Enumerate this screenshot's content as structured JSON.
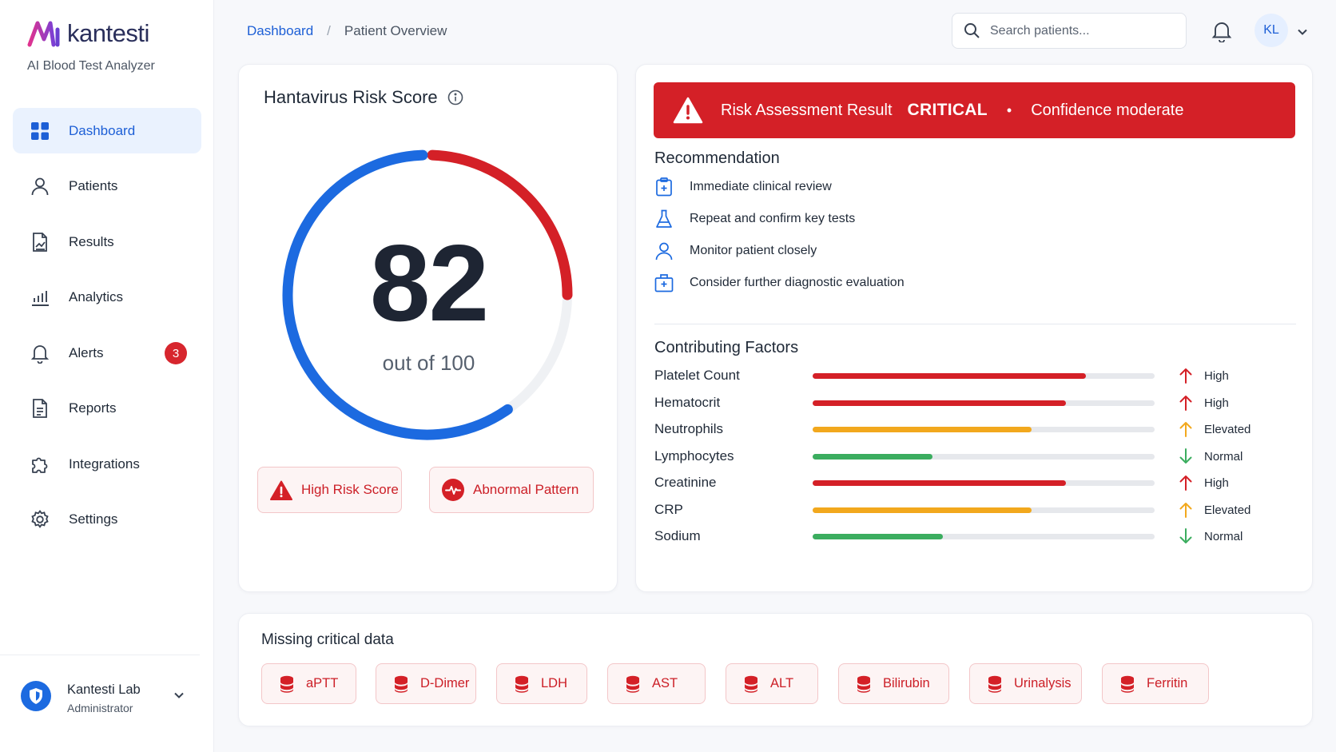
{
  "brand": {
    "name": "kantesti",
    "tagline": "AI Blood Test Analyzer"
  },
  "nav": [
    {
      "label": "Dashboard",
      "icon": "dashboard-icon",
      "active": true
    },
    {
      "label": "Patients",
      "icon": "user-icon"
    },
    {
      "label": "Results",
      "icon": "results-icon"
    },
    {
      "label": "Analytics",
      "icon": "analytics-icon"
    },
    {
      "label": "Alerts",
      "icon": "bell-icon",
      "badge": "3"
    },
    {
      "label": "Reports",
      "icon": "report-icon"
    },
    {
      "label": "Integrations",
      "icon": "puzzle-icon"
    },
    {
      "label": "Settings",
      "icon": "gear-icon"
    }
  ],
  "user": {
    "name": "Kantesti Lab",
    "role": "Administrator"
  },
  "breadcrumb": {
    "root": "Dashboard",
    "separator": "/",
    "current": "Patient Overview"
  },
  "search": {
    "placeholder": "Search patients..."
  },
  "avatar": {
    "initials": "KL"
  },
  "score": {
    "title": "Hantavirus Risk Score",
    "value": "82",
    "out_of": "out of 100",
    "progress": 0.82,
    "chips": {
      "high_risk": "High Risk Score",
      "abnormal": "Abnormal Pattern"
    }
  },
  "risk": {
    "label": "Risk Assessment Result",
    "level": "CRITICAL",
    "dot": "•",
    "confidence": "Confidence moderate"
  },
  "recommendation": {
    "title": "Recommendation",
    "items": [
      "Immediate clinical review",
      "Repeat and confirm key tests",
      "Monitor patient closely",
      "Consider further diagnostic evaluation"
    ]
  },
  "factors": {
    "title": "Contributing Factors",
    "items": [
      {
        "name": "Platelet Count",
        "level": 0.8,
        "status": "High",
        "color": "#d42027",
        "direction": "up"
      },
      {
        "name": "Hematocrit",
        "level": 0.74,
        "status": "High",
        "color": "#d42027",
        "direction": "up"
      },
      {
        "name": "Neutrophils",
        "level": 0.64,
        "status": "Elevated",
        "color": "#f2a81d",
        "direction": "up"
      },
      {
        "name": "Lymphocytes",
        "level": 0.35,
        "status": "Normal",
        "color": "#3bad5f",
        "direction": "down"
      },
      {
        "name": "Creatinine",
        "level": 0.74,
        "status": "High",
        "color": "#d42027",
        "direction": "up"
      },
      {
        "name": "CRP",
        "level": 0.64,
        "status": "Elevated",
        "color": "#f2a81d",
        "direction": "up"
      },
      {
        "name": "Sodium",
        "level": 0.38,
        "status": "Normal",
        "color": "#3bad5f",
        "direction": "down"
      }
    ]
  },
  "missing": {
    "title": "Missing critical data",
    "items": [
      "aPTT",
      "D-Dimer",
      "LDH",
      "AST",
      "ALT",
      "Bilirubin",
      "Urinalysis",
      "Ferritin"
    ]
  },
  "colors": {
    "primary": "#1d5fd6",
    "critical": "#d42027",
    "elevated": "#f2a81d",
    "normal": "#3bad5f"
  }
}
